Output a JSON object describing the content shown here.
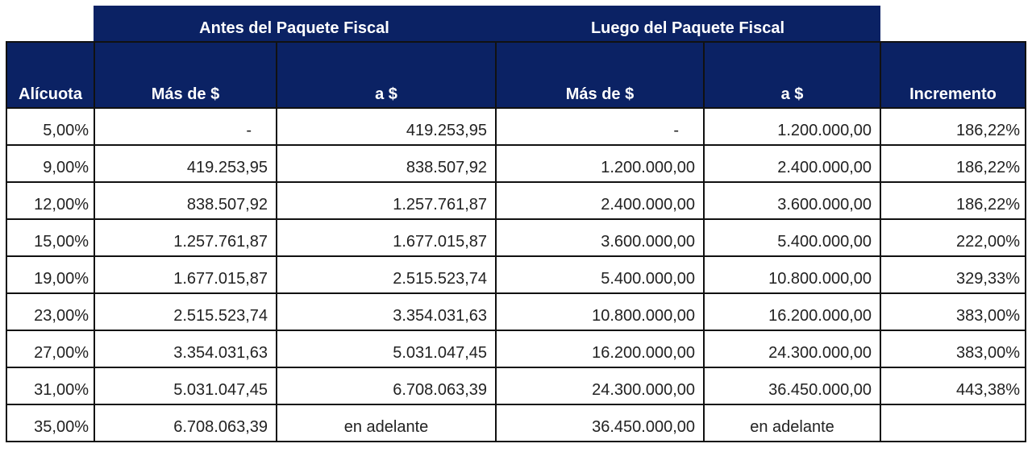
{
  "group_headers": {
    "before": "Antes del Paquete Fiscal",
    "after": "Luego del Paquete Fiscal"
  },
  "columns": {
    "rate": "Alícuota",
    "before_from": "Más de $",
    "before_to": "a $",
    "after_from": "Más de $",
    "after_to": "a $",
    "increase": "Incremento"
  },
  "rows": [
    {
      "rate": "5,00%",
      "before_from": "-",
      "before_to": "419.253,95",
      "after_from": "-",
      "after_to": "1.200.000,00",
      "increase": "186,22%"
    },
    {
      "rate": "9,00%",
      "before_from": "419.253,95",
      "before_to": "838.507,92",
      "after_from": "1.200.000,00",
      "after_to": "2.400.000,00",
      "increase": "186,22%"
    },
    {
      "rate": "12,00%",
      "before_from": "838.507,92",
      "before_to": "1.257.761,87",
      "after_from": "2.400.000,00",
      "after_to": "3.600.000,00",
      "increase": "186,22%"
    },
    {
      "rate": "15,00%",
      "before_from": "1.257.761,87",
      "before_to": "1.677.015,87",
      "after_from": "3.600.000,00",
      "after_to": "5.400.000,00",
      "increase": "222,00%"
    },
    {
      "rate": "19,00%",
      "before_from": "1.677.015,87",
      "before_to": "2.515.523,74",
      "after_from": "5.400.000,00",
      "after_to": "10.800.000,00",
      "increase": "329,33%"
    },
    {
      "rate": "23,00%",
      "before_from": "2.515.523,74",
      "before_to": "3.354.031,63",
      "after_from": "10.800.000,00",
      "after_to": "16.200.000,00",
      "increase": "383,00%"
    },
    {
      "rate": "27,00%",
      "before_from": "3.354.031,63",
      "before_to": "5.031.047,45",
      "after_from": "16.200.000,00",
      "after_to": "24.300.000,00",
      "increase": "383,00%"
    },
    {
      "rate": "31,00%",
      "before_from": "5.031.047,45",
      "before_to": "6.708.063,39",
      "after_from": "24.300.000,00",
      "after_to": "36.450.000,00",
      "increase": "443,38%"
    },
    {
      "rate": "35,00%",
      "before_from": "6.708.063,39",
      "before_to": "en adelante",
      "after_from": "36.450.000,00",
      "after_to": "en adelante",
      "increase": ""
    }
  ],
  "colors": {
    "header_bg": "#0b2264",
    "header_text": "#ffffff",
    "border": "#111111"
  }
}
